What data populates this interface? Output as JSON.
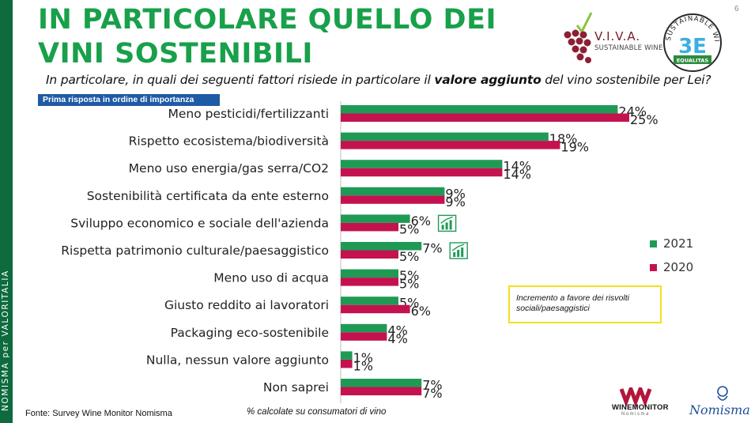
{
  "sidebar": {
    "text": "NOMISMA per VALORITALIA"
  },
  "page_number": "6",
  "title": "IN PARTICOLARE QUELLO DEI VINI SOSTENIBILI",
  "question": {
    "prefix": "In particolare, in quali dei seguenti fattori risiede in particolare il ",
    "emphasis": "valore aggiunto",
    "suffix": " del vino sostenibile per Lei?"
  },
  "pill_label": "Prima risposta in ordine di importanza",
  "logos": {
    "viva_title": "V.I.V.A.",
    "viva_sub": "SUSTAINABLE WINE",
    "threee_top": "SUSTAINABLE WINERY",
    "threee_mark": "3E",
    "threee_bottom": "EQUALITAS",
    "winemonitor": "WINEMONITOR",
    "winemonitor_sub": "Nomisma",
    "nomisma": "Nomisma"
  },
  "colors": {
    "series_2021": "#1f9a55",
    "series_2020": "#c4124f",
    "side_strip": "#0d6b3e",
    "title": "#18a04a",
    "note_border": "#f2e21a"
  },
  "chart_data": {
    "type": "bar",
    "orientation": "horizontal",
    "categories": [
      "Meno pesticidi/fertilizzanti",
      "Rispetto ecosistema/biodiversità",
      "Meno uso energia/gas serra/CO2",
      "Sostenibilità certificata da ente esterno",
      "Sviluppo economico e sociale dell'azienda",
      "Rispetta patrimonio culturale/paesaggistico",
      "Meno uso di acqua",
      "Giusto reddito ai lavoratori",
      "Packaging eco-sostenibile",
      "Nulla, nessun valore aggiunto",
      "Non saprei"
    ],
    "series": [
      {
        "name": "2021",
        "values": [
          24,
          18,
          14,
          9,
          6,
          7,
          5,
          5,
          4,
          1,
          7
        ],
        "labels": [
          "24%",
          "18%",
          "14%",
          "9%",
          "6%",
          "7%",
          "5%",
          "5%",
          "4%",
          "1%",
          "7%"
        ]
      },
      {
        "name": "2020",
        "values": [
          25,
          19,
          14,
          9,
          5,
          5,
          5,
          6,
          4,
          1,
          7
        ],
        "labels": [
          "25%",
          "19%",
          "14%",
          "9%",
          "5%",
          "5%",
          "5%",
          "6%",
          "4%",
          "1%",
          "7%"
        ]
      }
    ],
    "highlight_icon": "growth-chart-icon",
    "highlighted_categories": [
      4,
      5
    ],
    "legend_position": "right",
    "xlim": [
      0,
      25
    ]
  },
  "note": "Incremento a favore dei risvolti sociali/paesaggistici",
  "source": "Fonte: Survey Wine Monitor Nomisma",
  "calc_note": "% calcolate su consumatori di vino"
}
